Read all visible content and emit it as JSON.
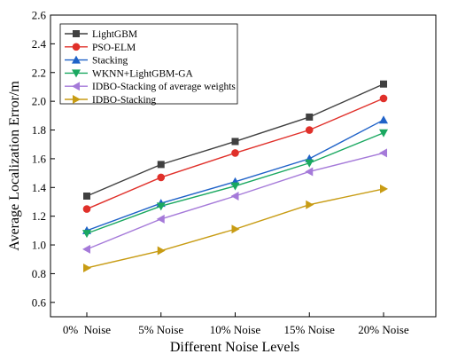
{
  "chart_data": {
    "type": "line",
    "categories": [
      "0%  Noise",
      "5% Noise",
      "10% Noise",
      "15% Noise",
      "20% Noise"
    ],
    "xlabel": "Different Noise Levels",
    "ylabel": "Average Localization Error/m",
    "ylim": [
      0.5,
      2.6
    ],
    "yticks": [
      0.6,
      0.8,
      1.0,
      1.2,
      1.4,
      1.6,
      1.8,
      2.0,
      2.2,
      2.4,
      2.6
    ],
    "grid": false,
    "legend_position": "top-left",
    "series": [
      {
        "name": "LightGBM",
        "values": [
          1.34,
          1.56,
          1.72,
          1.89,
          2.12
        ],
        "color": "#404040",
        "marker": "square"
      },
      {
        "name": "PSO-ELM",
        "values": [
          1.25,
          1.47,
          1.64,
          1.8,
          2.02
        ],
        "color": "#e0302a",
        "marker": "circle"
      },
      {
        "name": "Stacking",
        "values": [
          1.1,
          1.29,
          1.44,
          1.6,
          1.87
        ],
        "color": "#1f62c8",
        "marker": "triangle-up"
      },
      {
        "name": "WKNN+LightGBM-GA",
        "values": [
          1.08,
          1.27,
          1.41,
          1.57,
          1.78
        ],
        "color": "#1aa860",
        "marker": "triangle-down"
      },
      {
        "name": "IDBO-Stacking of average weights",
        "values": [
          0.97,
          1.18,
          1.34,
          1.51,
          1.64
        ],
        "color": "#a57ad9",
        "marker": "triangle-left"
      },
      {
        "name": "IDBO-Stacking",
        "values": [
          0.84,
          0.96,
          1.11,
          1.28,
          1.39
        ],
        "color": "#c89c14",
        "marker": "triangle-right"
      }
    ]
  }
}
